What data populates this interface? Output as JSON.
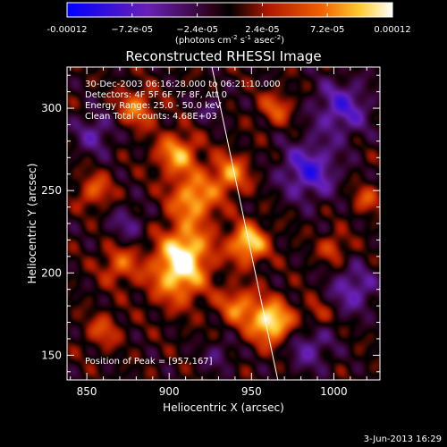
{
  "chart_data": {
    "type": "heatmap",
    "title": "Reconstructed RHESSI Image",
    "xlabel": "Heliocentric X (arcsec)",
    "ylabel": "Heliocentric Y (arcsec)",
    "xlim": [
      838,
      1028
    ],
    "ylim": [
      135,
      325
    ],
    "x_ticks": [
      850,
      900,
      950,
      1000
    ],
    "y_ticks": [
      150,
      200,
      250,
      300
    ],
    "colorbar": {
      "range": [
        -0.00012,
        0.00012
      ],
      "tick_values": [
        -0.00012,
        -7.2e-05,
        -2.4e-05,
        2.4e-05,
        7.2e-05,
        0.00012
      ],
      "tick_labels": [
        "-0.00012",
        "−7.2e-05",
        "−2.4e-05",
        "2.4e-05",
        "7.2e-05",
        "0.00012"
      ],
      "unit_label": "(photons cm",
      "unit_sup1": "-2",
      "unit_mid": " s",
      "unit_sup2": "-1",
      "unit_tail": " asec",
      "unit_sup3": "-2",
      "unit_end": ")",
      "colormap": "blue-purple-red-yellow-white"
    },
    "info_lines": [
      "30-Dec-2003 06:16:28.000 to 06:21:10.000",
      "Detectors: 4F 5F 6F 7F 8F, Att 0",
      "Energy Range: 25.0 - 50.0 keV",
      "Clean     Total counts: 4.68E+03"
    ],
    "peak_label": "Position of Peak = [957,167]",
    "peak_position": [
      957,
      167
    ],
    "limb_line": [
      [
        926,
        325
      ],
      [
        966,
        135
      ]
    ],
    "sources": [
      {
        "x": 962,
        "y": 170,
        "amplitude": 0.00012,
        "sigma": 9
      },
      {
        "x": 905,
        "y": 198,
        "amplitude": 9e-05,
        "sigma": 12
      },
      {
        "x": 910,
        "y": 215,
        "amplitude": 8.5e-05,
        "sigma": 11
      },
      {
        "x": 915,
        "y": 245,
        "amplitude": 9e-05,
        "sigma": 10
      },
      {
        "x": 905,
        "y": 272,
        "amplitude": 8.5e-05,
        "sigma": 9
      },
      {
        "x": 880,
        "y": 300,
        "amplitude": 7e-05,
        "sigma": 8
      },
      {
        "x": 948,
        "y": 218,
        "amplitude": 0.00011,
        "sigma": 8
      },
      {
        "x": 937,
        "y": 260,
        "amplitude": 8e-05,
        "sigma": 8
      },
      {
        "x": 965,
        "y": 300,
        "amplitude": 5.5e-05,
        "sigma": 7
      },
      {
        "x": 942,
        "y": 180,
        "amplitude": 7e-05,
        "sigma": 8
      },
      {
        "x": 870,
        "y": 205,
        "amplitude": 6e-05,
        "sigma": 8
      },
      {
        "x": 855,
        "y": 250,
        "amplitude": 6e-05,
        "sigma": 7
      },
      {
        "x": 1000,
        "y": 215,
        "amplitude": 5e-05,
        "sigma": 6
      },
      {
        "x": 1020,
        "y": 245,
        "amplitude": 5e-05,
        "sigma": 6
      },
      {
        "x": 990,
        "y": 175,
        "amplitude": 4e-05,
        "sigma": 6
      },
      {
        "x": 860,
        "y": 165,
        "amplitude": 5e-05,
        "sigma": 7
      },
      {
        "x": 985,
        "y": 262,
        "amplitude": -8e-05,
        "sigma": 12
      },
      {
        "x": 1005,
        "y": 300,
        "amplitude": -7e-05,
        "sigma": 12
      },
      {
        "x": 855,
        "y": 285,
        "amplitude": -5e-05,
        "sigma": 9
      },
      {
        "x": 875,
        "y": 230,
        "amplitude": -4e-05,
        "sigma": 8
      },
      {
        "x": 985,
        "y": 155,
        "amplitude": -5e-05,
        "sigma": 10
      },
      {
        "x": 930,
        "y": 150,
        "amplitude": -3.5e-05,
        "sigma": 7
      },
      {
        "x": 1012,
        "y": 190,
        "amplitude": -6e-05,
        "sigma": 10
      },
      {
        "x": 925,
        "y": 300,
        "amplitude": -3e-05,
        "sigma": 7
      }
    ]
  },
  "footer": {
    "timestamp": "3-Jun-2013 16:29"
  }
}
